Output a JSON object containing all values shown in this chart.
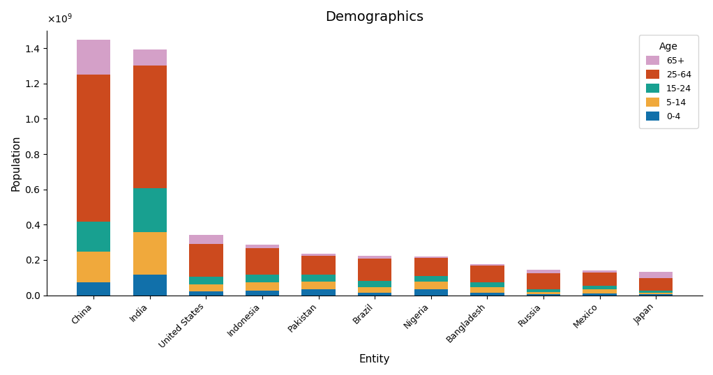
{
  "title": "Demographics",
  "xlabel": "Entity",
  "ylabel": "Population",
  "categories": [
    "China",
    "India",
    "United States",
    "Indonesia",
    "Pakistan",
    "Brazil",
    "Nigeria",
    "Bangladesh",
    "Russia",
    "Mexico",
    "Japan"
  ],
  "age_groups": [
    "0-4",
    "5-14",
    "15-24",
    "25-64",
    "65+"
  ],
  "colors": {
    "0-4": "#1170aa",
    "5-14": "#f0a93c",
    "15-24": "#18a090",
    "25-64": "#cc4a1e",
    "65+": "#d4a0c8"
  },
  "data": {
    "0-4": [
      72000000,
      118000000,
      20000000,
      25000000,
      33000000,
      15000000,
      33000000,
      15000000,
      7000000,
      11000000,
      4500000
    ],
    "5-14": [
      175000000,
      240000000,
      40000000,
      48000000,
      46000000,
      30000000,
      44000000,
      30000000,
      12000000,
      22000000,
      9000000
    ],
    "15-24": [
      170000000,
      250000000,
      44000000,
      44000000,
      38000000,
      35000000,
      33000000,
      28000000,
      14000000,
      22000000,
      11000000
    ],
    "25-64": [
      835000000,
      695000000,
      185000000,
      150000000,
      108000000,
      128000000,
      100000000,
      95000000,
      90000000,
      75000000,
      72000000
    ],
    "65+": [
      195000000,
      90000000,
      52000000,
      20000000,
      11000000,
      17000000,
      7500000,
      9000000,
      22000000,
      10000000,
      34000000
    ]
  },
  "figsize": [
    10.22,
    5.38
  ],
  "dpi": 100,
  "ylim": [
    0,
    1500000000.0
  ],
  "legend_title": "Age",
  "legend_labels_order": [
    "65+",
    "25-64",
    "15-24",
    "5-14",
    "0-4"
  ],
  "background_color": "#ffffff"
}
